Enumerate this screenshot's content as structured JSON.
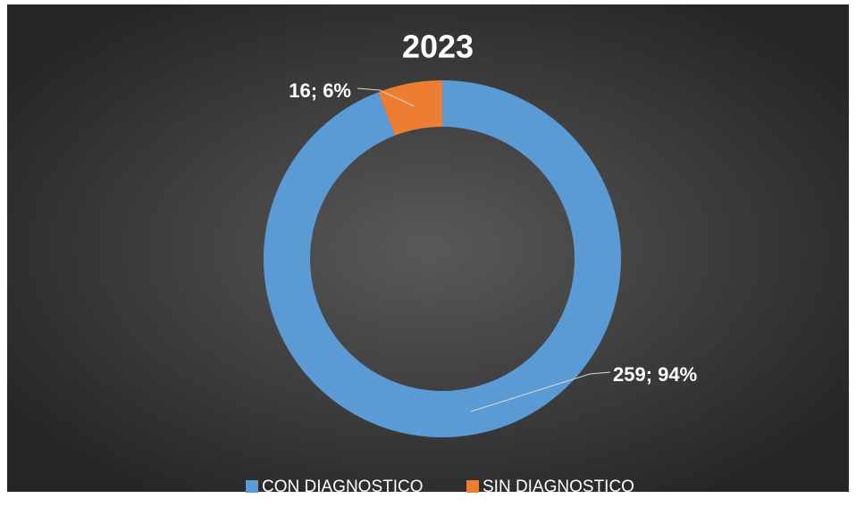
{
  "chart_data": {
    "type": "donut",
    "title": "2023",
    "categories": [
      "CON DIAGNOSTICO",
      "SIN DIAGNOSTICO"
    ],
    "values": [
      259,
      16
    ],
    "value_labels": [
      "259; 94%",
      "16; 6%"
    ],
    "colors": [
      "#5b9bd5",
      "#ed7d31"
    ],
    "legend": "bottom"
  }
}
